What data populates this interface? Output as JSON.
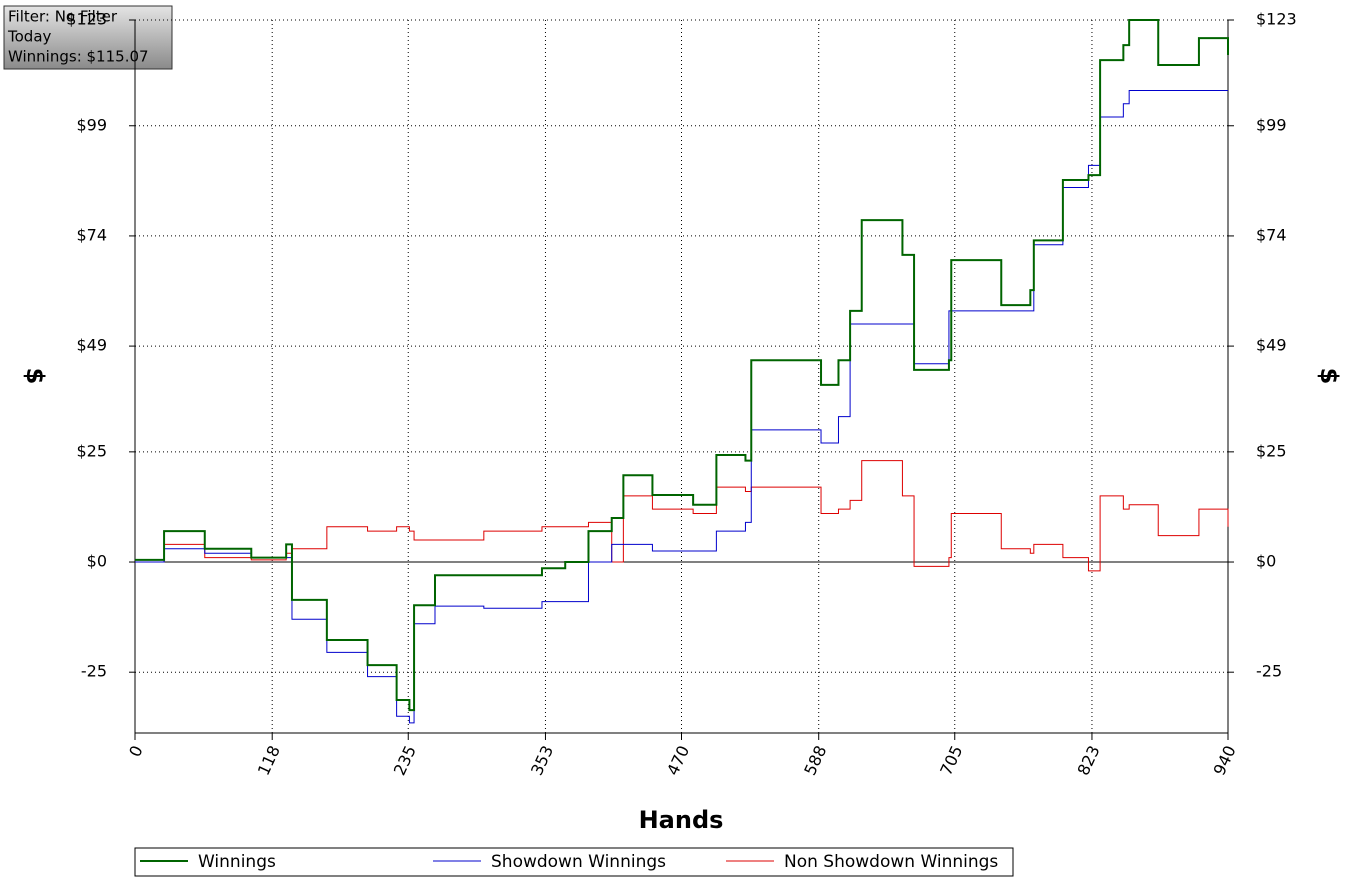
{
  "chart_data": {
    "type": "line",
    "annotations": [
      "Filter: No Filter",
      "Today",
      "Winnings: $115.07"
    ],
    "x_label": "Hands",
    "y_label": "$",
    "y2_label": "$",
    "x": [
      0,
      25,
      60,
      100,
      130,
      135,
      165,
      200,
      225,
      236,
      240,
      258,
      300,
      350,
      370,
      390,
      410,
      420,
      445,
      480,
      500,
      525,
      530,
      590,
      605,
      615,
      625,
      660,
      670,
      700,
      702,
      745,
      770,
      773,
      798,
      820,
      830,
      850,
      855,
      880,
      915,
      940
    ],
    "series": [
      {
        "name": "Winnings",
        "color": "#006400",
        "width": 2,
        "values": [
          0.5,
          7,
          3,
          1,
          4,
          -8.6,
          -17.7,
          -23.4,
          -31.3,
          -33.6,
          -9.8,
          -3,
          -3,
          -1.4,
          0,
          7,
          10,
          19.7,
          15.2,
          13,
          24.3,
          23,
          45.8,
          40.2,
          45.8,
          57,
          77.6,
          69.7,
          43.6,
          45.8,
          68.5,
          58.3,
          61.7,
          73,
          86.7,
          87.8,
          113.9,
          117.3,
          123,
          112.8,
          118.9,
          115.07
        ]
      },
      {
        "name": "Showdown Winnings",
        "color": "#0000cc",
        "width": 1,
        "values": [
          0,
          3,
          2,
          1,
          1,
          -13,
          -20.5,
          -26,
          -35,
          -36.5,
          -14,
          -10,
          -10.5,
          -9,
          -9,
          0,
          4,
          4,
          2.5,
          2.5,
          7,
          9,
          30,
          27,
          33,
          54,
          54,
          54,
          45,
          57,
          57,
          57,
          57,
          72,
          85,
          90,
          101,
          104,
          107,
          107,
          107,
          107
        ]
      },
      {
        "name": "Non Showdown Winnings",
        "color": "#dd0000",
        "width": 1,
        "values": [
          0,
          4,
          1,
          0.5,
          2,
          3,
          8,
          7,
          8,
          7,
          5,
          5,
          7,
          8,
          8,
          9,
          0,
          15,
          12,
          11,
          17,
          16,
          17,
          11,
          12,
          14,
          23,
          15,
          -1,
          1,
          11,
          3,
          2,
          4,
          1,
          -2,
          15,
          12,
          13,
          6,
          12,
          8
        ]
      }
    ],
    "xlim": [
      0,
      940
    ],
    "xticks": [
      0,
      118,
      235,
      353,
      470,
      588,
      705,
      823,
      940
    ],
    "ylim": [
      -38.8,
      123
    ],
    "yticks": [
      {
        "value": -25,
        "label": "-25"
      },
      {
        "value": 0,
        "label": "$0"
      },
      {
        "value": 25,
        "label": "$25"
      },
      {
        "value": 49,
        "label": "$49"
      },
      {
        "value": 74,
        "label": "$74"
      },
      {
        "value": 99,
        "label": "$99"
      },
      {
        "value": 123,
        "label": "$123"
      }
    ],
    "y2lim": [
      -38.8,
      123
    ],
    "y2ticks": [
      {
        "value": -25,
        "label": "-25"
      },
      {
        "value": 0,
        "label": "$0"
      },
      {
        "value": 25,
        "label": "$25"
      },
      {
        "value": 49,
        "label": "$49"
      },
      {
        "value": 74,
        "label": "$74"
      },
      {
        "value": 99,
        "label": "$99"
      },
      {
        "value": 123,
        "label": "$123"
      }
    ],
    "grid": true
  }
}
